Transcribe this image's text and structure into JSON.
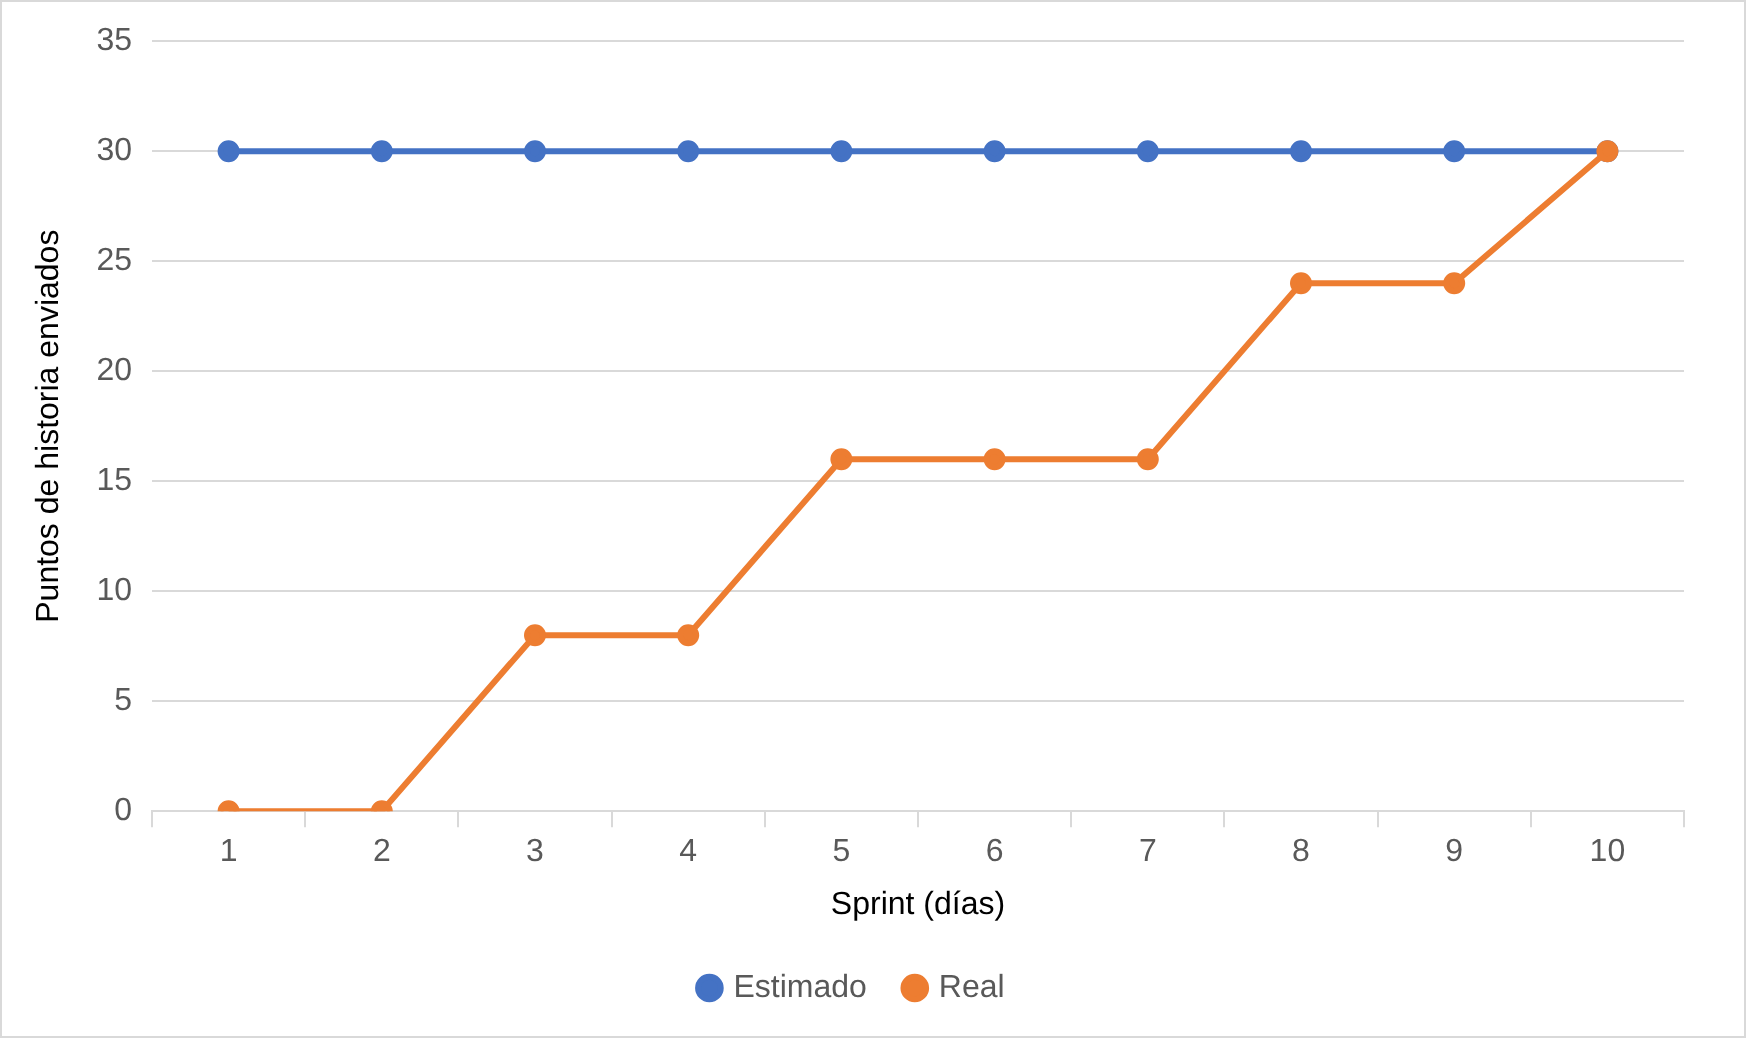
{
  "chart_data": {
    "type": "line",
    "xlabel": "Sprint (días)",
    "ylabel": "Puntos de historia enviados",
    "categories": [
      "1",
      "2",
      "3",
      "4",
      "5",
      "6",
      "7",
      "8",
      "9",
      "10"
    ],
    "series": [
      {
        "name": "Estimado",
        "color": "#4472c4",
        "values": [
          30,
          30,
          30,
          30,
          30,
          30,
          30,
          30,
          30,
          30
        ]
      },
      {
        "name": "Real",
        "color": "#ed7d31",
        "values": [
          0,
          0,
          8,
          8,
          16,
          16,
          16,
          24,
          24,
          30
        ]
      }
    ],
    "ylim": [
      0,
      35
    ],
    "yticks": [
      0,
      5,
      10,
      15,
      20,
      25,
      30,
      35
    ],
    "grid": "y",
    "legend": "bottom",
    "marker": "circle",
    "line_style": "solid"
  }
}
